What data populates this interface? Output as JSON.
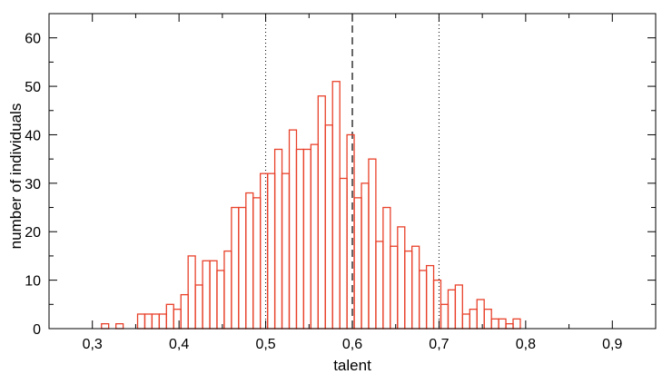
{
  "chart_data": {
    "type": "bar",
    "title": "",
    "xlabel": "talent",
    "ylabel": "number of individuals",
    "xlim": [
      0.25,
      0.95
    ],
    "ylim": [
      0,
      65
    ],
    "bin_width": 0.00833,
    "bar_color": "#e8412a",
    "x_ticks": [
      0.3,
      0.4,
      0.5,
      0.6,
      0.7,
      0.8,
      0.9
    ],
    "x_tick_labels": [
      "0,3",
      "0,4",
      "0,5",
      "0,6",
      "0,7",
      "0,8",
      "0,9"
    ],
    "y_ticks": [
      0,
      10,
      20,
      30,
      40,
      50,
      60
    ],
    "y_tick_labels": [
      "0",
      "10",
      "20",
      "30",
      "40",
      "50",
      "60"
    ],
    "bins": [
      {
        "x": 0.3105,
        "value": 1
      },
      {
        "x": 0.3188,
        "value": 0
      },
      {
        "x": 0.3272,
        "value": 1
      },
      {
        "x": 0.3355,
        "value": 0
      },
      {
        "x": 0.3438,
        "value": 0
      },
      {
        "x": 0.3522,
        "value": 3
      },
      {
        "x": 0.3605,
        "value": 3
      },
      {
        "x": 0.3688,
        "value": 3
      },
      {
        "x": 0.3772,
        "value": 3
      },
      {
        "x": 0.3855,
        "value": 5
      },
      {
        "x": 0.3938,
        "value": 4
      },
      {
        "x": 0.4022,
        "value": 7
      },
      {
        "x": 0.4105,
        "value": 15
      },
      {
        "x": 0.4188,
        "value": 9
      },
      {
        "x": 0.4272,
        "value": 14
      },
      {
        "x": 0.4355,
        "value": 14
      },
      {
        "x": 0.4438,
        "value": 12
      },
      {
        "x": 0.4522,
        "value": 16
      },
      {
        "x": 0.4605,
        "value": 25
      },
      {
        "x": 0.4688,
        "value": 25
      },
      {
        "x": 0.4772,
        "value": 28
      },
      {
        "x": 0.4855,
        "value": 27
      },
      {
        "x": 0.4938,
        "value": 32
      },
      {
        "x": 0.5022,
        "value": 32
      },
      {
        "x": 0.5105,
        "value": 37
      },
      {
        "x": 0.5188,
        "value": 32
      },
      {
        "x": 0.5272,
        "value": 41
      },
      {
        "x": 0.5355,
        "value": 37
      },
      {
        "x": 0.5438,
        "value": 37
      },
      {
        "x": 0.5522,
        "value": 38
      },
      {
        "x": 0.5605,
        "value": 48
      },
      {
        "x": 0.5688,
        "value": 42
      },
      {
        "x": 0.5772,
        "value": 51
      },
      {
        "x": 0.5855,
        "value": 31
      },
      {
        "x": 0.5938,
        "value": 40
      },
      {
        "x": 0.6022,
        "value": 27
      },
      {
        "x": 0.6105,
        "value": 30
      },
      {
        "x": 0.6188,
        "value": 35
      },
      {
        "x": 0.6272,
        "value": 18
      },
      {
        "x": 0.6355,
        "value": 25
      },
      {
        "x": 0.6438,
        "value": 17
      },
      {
        "x": 0.6522,
        "value": 21
      },
      {
        "x": 0.6605,
        "value": 16
      },
      {
        "x": 0.6688,
        "value": 17
      },
      {
        "x": 0.6772,
        "value": 12
      },
      {
        "x": 0.6855,
        "value": 13
      },
      {
        "x": 0.6938,
        "value": 10
      },
      {
        "x": 0.7022,
        "value": 5
      },
      {
        "x": 0.7105,
        "value": 8
      },
      {
        "x": 0.7188,
        "value": 9
      },
      {
        "x": 0.7272,
        "value": 3
      },
      {
        "x": 0.7355,
        "value": 4
      },
      {
        "x": 0.7438,
        "value": 6
      },
      {
        "x": 0.7522,
        "value": 4
      },
      {
        "x": 0.7605,
        "value": 2
      },
      {
        "x": 0.7688,
        "value": 2
      },
      {
        "x": 0.7772,
        "value": 1
      },
      {
        "x": 0.7855,
        "value": 2
      }
    ],
    "reference_lines": [
      {
        "x": 0.5,
        "style": "dotted"
      },
      {
        "x": 0.6,
        "style": "dashed"
      },
      {
        "x": 0.7,
        "style": "dotted"
      }
    ],
    "grid": false,
    "legend": "none"
  }
}
